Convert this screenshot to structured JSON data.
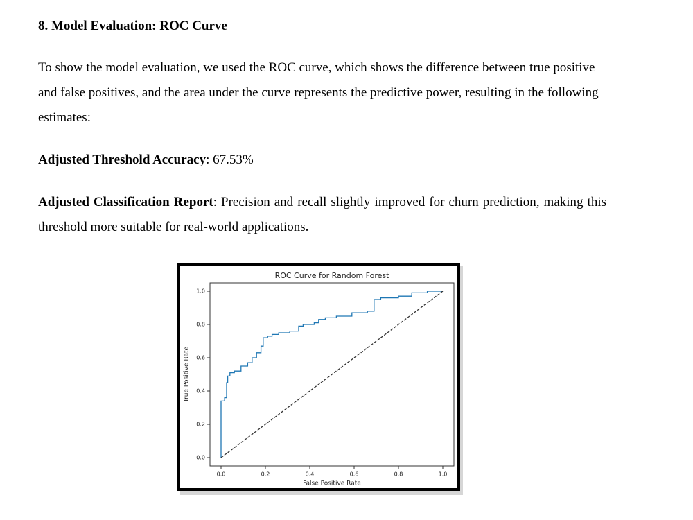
{
  "heading": "8. Model Evaluation: ROC Curve",
  "paragraph": "To show the model evaluation, we used the ROC curve, which shows the difference between true positive and false positives, and the area under the curve represents the predictive power, resulting in the following estimates:",
  "accuracy": {
    "label": "Adjusted Threshold Accuracy",
    "text": ": 67.53%"
  },
  "report": {
    "label": "Adjusted Classification Report",
    "text": ": Precision and recall slightly improved for churn prediction, making this threshold more suitable for real-world applications."
  },
  "chart_data": {
    "type": "line",
    "title": "ROC Curve for Random Forest",
    "x_label": "False Positive Rate",
    "y_label": "True Positive Rate",
    "xlim": [
      -0.05,
      1.05
    ],
    "ylim": [
      -0.05,
      1.05
    ],
    "grid": false,
    "xticks": [
      {
        "value": 0,
        "label": "0.0"
      },
      {
        "value": 0.2,
        "label": "0.2"
      },
      {
        "value": 0.4,
        "label": "0.4"
      },
      {
        "value": 0.6,
        "label": "0.6"
      },
      {
        "value": 0.8,
        "label": "0.8"
      },
      {
        "value": 1,
        "label": "1.0"
      }
    ],
    "yticks": [
      {
        "value": 0,
        "label": "0.0"
      },
      {
        "value": 0.2,
        "label": "0.2"
      },
      {
        "value": 0.4,
        "label": "0.4"
      },
      {
        "value": 0.6,
        "label": "0.6"
      },
      {
        "value": 0.8,
        "label": "0.8"
      },
      {
        "value": 1,
        "label": "1.0"
      }
    ],
    "series": [
      {
        "color": "#1f77b4",
        "dashed": false,
        "x": [
          0,
          0,
          0.016,
          0.016,
          0.025,
          0.025,
          0.03,
          0.03,
          0.04,
          0.04,
          0.06,
          0.06,
          0.09,
          0.09,
          0.12,
          0.12,
          0.14,
          0.14,
          0.16,
          0.16,
          0.18,
          0.18,
          0.19,
          0.19,
          0.21,
          0.21,
          0.23,
          0.23,
          0.26,
          0.26,
          0.31,
          0.31,
          0.35,
          0.35,
          0.37,
          0.37,
          0.42,
          0.42,
          0.44,
          0.44,
          0.47,
          0.47,
          0.52,
          0.52,
          0.59,
          0.59,
          0.66,
          0.66,
          0.69,
          0.69,
          0.72,
          0.72,
          0.8,
          0.8,
          0.86,
          0.86,
          0.93,
          0.93,
          1
        ],
        "values": [
          0,
          0.34,
          0.34,
          0.36,
          0.36,
          0.45,
          0.45,
          0.49,
          0.49,
          0.51,
          0.51,
          0.52,
          0.52,
          0.55,
          0.55,
          0.57,
          0.57,
          0.6,
          0.6,
          0.63,
          0.63,
          0.67,
          0.67,
          0.72,
          0.72,
          0.73,
          0.73,
          0.74,
          0.74,
          0.75,
          0.75,
          0.76,
          0.76,
          0.79,
          0.79,
          0.8,
          0.8,
          0.81,
          0.81,
          0.83,
          0.83,
          0.84,
          0.84,
          0.85,
          0.85,
          0.87,
          0.87,
          0.88,
          0.88,
          0.95,
          0.95,
          0.96,
          0.96,
          0.97,
          0.97,
          0.99,
          0.99,
          1,
          1
        ]
      },
      {
        "color": "#333333",
        "dashed": true,
        "x": [
          0,
          1
        ],
        "values": [
          0,
          1
        ]
      }
    ]
  }
}
